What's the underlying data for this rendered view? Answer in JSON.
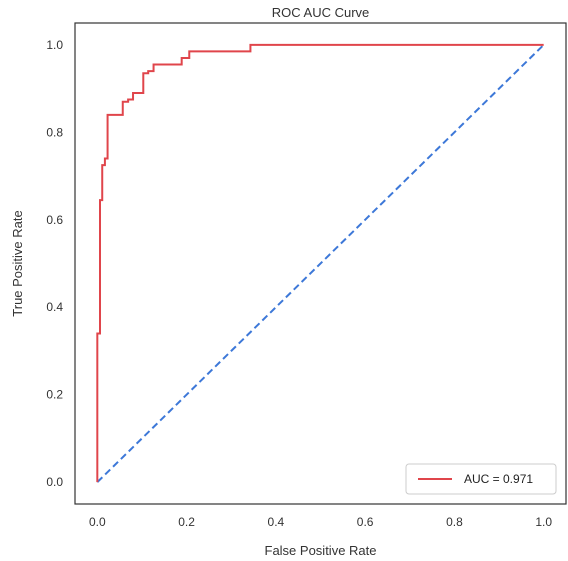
{
  "chart_data": {
    "type": "line",
    "title": "ROC AUC Curve",
    "xlabel": "False Positive Rate",
    "ylabel": "True Positive Rate",
    "xlim": [
      -0.05,
      1.05
    ],
    "ylim": [
      -0.05,
      1.05
    ],
    "xticks": [
      0.0,
      0.2,
      0.4,
      0.6,
      0.8,
      1.0
    ],
    "yticks": [
      0.0,
      0.2,
      0.4,
      0.6,
      0.8,
      1.0
    ],
    "xtick_labels": [
      "0.0",
      "0.2",
      "0.4",
      "0.6",
      "0.8",
      "1.0"
    ],
    "ytick_labels": [
      "0.0",
      "0.2",
      "0.4",
      "0.6",
      "0.8",
      "1.0"
    ],
    "grid": false,
    "legend_position": "lower-right",
    "series": [
      {
        "name": "AUC = 0.971",
        "color": "#e0454b",
        "style": "solid",
        "x": [
          0.0,
          0.0,
          0.006,
          0.006,
          0.011,
          0.011,
          0.017,
          0.017,
          0.023,
          0.023,
          0.057,
          0.057,
          0.069,
          0.069,
          0.08,
          0.08,
          0.103,
          0.103,
          0.114,
          0.114,
          0.126,
          0.126,
          0.189,
          0.189,
          0.206,
          0.206,
          0.343,
          0.343,
          1.0
        ],
        "y": [
          0.0,
          0.34,
          0.34,
          0.645,
          0.645,
          0.725,
          0.725,
          0.74,
          0.74,
          0.84,
          0.84,
          0.87,
          0.87,
          0.875,
          0.875,
          0.89,
          0.89,
          0.935,
          0.935,
          0.94,
          0.94,
          0.955,
          0.955,
          0.97,
          0.97,
          0.985,
          0.985,
          1.0,
          1.0
        ]
      },
      {
        "name": "",
        "color": "#3d78d8",
        "style": "dashed",
        "x": [
          0.0,
          1.0
        ],
        "y": [
          0.0,
          1.0
        ]
      }
    ]
  }
}
